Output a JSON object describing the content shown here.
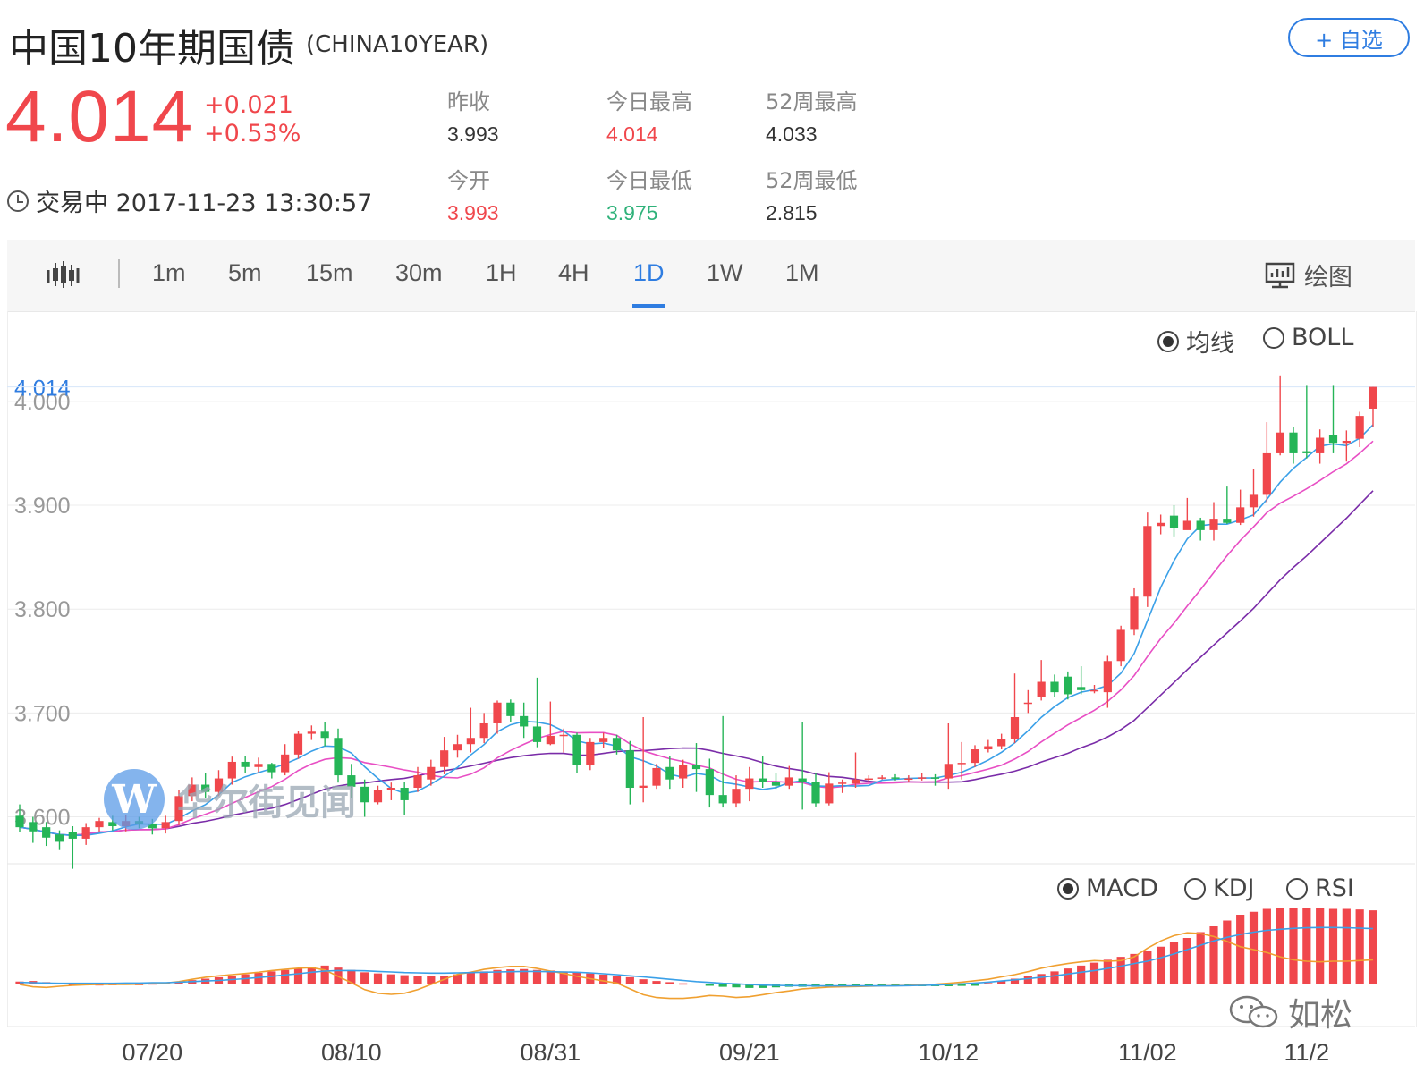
{
  "header": {
    "title": "中国10年期国债",
    "symbol": "(CHINA10YEAR)",
    "watch_label": "+ 自选",
    "price": "4.014",
    "change": "+0.021",
    "change_pct": "+0.53%",
    "status": "交易中 2017-11-23 13:30:57"
  },
  "stats": [
    {
      "label": "昨收",
      "value": "3.993",
      "color": "dark"
    },
    {
      "label": "今日最高",
      "value": "4.014",
      "color": "red"
    },
    {
      "label": "52周最高",
      "value": "4.033",
      "color": "dark"
    },
    {
      "label": "今开",
      "value": "3.993",
      "color": "red"
    },
    {
      "label": "今日最低",
      "value": "3.975",
      "color": "green"
    },
    {
      "label": "52周最低",
      "value": "2.815",
      "color": "dark"
    }
  ],
  "toolbar": {
    "tabs": [
      "1m",
      "5m",
      "15m",
      "30m",
      "1H",
      "4H",
      "1D",
      "1W",
      "1M"
    ],
    "active_tab": "1D",
    "draw_label": "绘图"
  },
  "overlay_options": {
    "ma": "均线",
    "boll": "BOLL",
    "selected": "均线"
  },
  "indicator_options": {
    "macd": "MACD",
    "kdj": "KDJ",
    "rsi": "RSI",
    "selected": "MACD"
  },
  "watermark": {
    "logo": "W",
    "text": "华尔街见闻"
  },
  "wechat": {
    "name": "如松"
  },
  "colors": {
    "up": "#f0474c",
    "down": "#25b557",
    "accent": "#2f7de1",
    "ma5": "#3aa0e8",
    "ma10": "#e84fc4",
    "ma20": "#7a2ca8",
    "dea": "#f0a030",
    "dif": "#3aa0e8"
  },
  "chart_data": {
    "type": "candlestick",
    "ylim": [
      3.56,
      4.03
    ],
    "yticks": [
      "3.600",
      "3.700",
      "3.800",
      "3.900",
      "4.000"
    ],
    "last_price_label": "4.014",
    "xlabels": [
      "07/20",
      "08/10",
      "08/31",
      "09/21",
      "10/12",
      "11/02",
      "11/2"
    ],
    "xlabel_index": [
      10,
      25,
      40,
      55,
      70,
      85,
      97
    ],
    "candles": [
      [
        3.601,
        3.59,
        3.612,
        3.585
      ],
      [
        3.595,
        3.586,
        3.6,
        3.575
      ],
      [
        3.59,
        3.58,
        3.595,
        3.572
      ],
      [
        3.583,
        3.576,
        3.587,
        3.568
      ],
      [
        3.585,
        3.579,
        3.591,
        3.55
      ],
      [
        3.579,
        3.59,
        3.594,
        3.573
      ],
      [
        3.59,
        3.596,
        3.599,
        3.586
      ],
      [
        3.595,
        3.591,
        3.601,
        3.587
      ],
      [
        3.591,
        3.596,
        3.602,
        3.586
      ],
      [
        3.596,
        3.593,
        3.6,
        3.589
      ],
      [
        3.593,
        3.589,
        3.598,
        3.583
      ],
      [
        3.589,
        3.595,
        3.601,
        3.584
      ],
      [
        3.596,
        3.62,
        3.626,
        3.592
      ],
      [
        3.62,
        3.631,
        3.638,
        3.615
      ],
      [
        3.631,
        3.624,
        3.642,
        3.618
      ],
      [
        3.624,
        3.637,
        3.645,
        3.62
      ],
      [
        3.637,
        3.653,
        3.658,
        3.631
      ],
      [
        3.653,
        3.648,
        3.659,
        3.642
      ],
      [
        3.648,
        3.651,
        3.657,
        3.643
      ],
      [
        3.651,
        3.643,
        3.652,
        3.637
      ],
      [
        3.643,
        3.66,
        3.67,
        3.64
      ],
      [
        3.66,
        3.68,
        3.683,
        3.656
      ],
      [
        3.68,
        3.682,
        3.688,
        3.674
      ],
      [
        3.682,
        3.676,
        3.691,
        3.668
      ],
      [
        3.676,
        3.64,
        3.685,
        3.633
      ],
      [
        3.64,
        3.629,
        3.651,
        3.618
      ],
      [
        3.629,
        3.614,
        3.636,
        3.6
      ],
      [
        3.614,
        3.626,
        3.63,
        3.612
      ],
      [
        3.626,
        3.628,
        3.633,
        3.616
      ],
      [
        3.628,
        3.616,
        3.634,
        3.602
      ],
      [
        3.628,
        3.64,
        3.648,
        3.624
      ],
      [
        3.636,
        3.648,
        3.655,
        3.63
      ],
      [
        3.648,
        3.664,
        3.677,
        3.641
      ],
      [
        3.664,
        3.67,
        3.679,
        3.657
      ],
      [
        3.67,
        3.676,
        3.705,
        3.662
      ],
      [
        3.676,
        3.69,
        3.7,
        3.671
      ],
      [
        3.69,
        3.71,
        3.712,
        3.68
      ],
      [
        3.71,
        3.697,
        3.713,
        3.691
      ],
      [
        3.697,
        3.687,
        3.71,
        3.676
      ],
      [
        3.687,
        3.672,
        3.734,
        3.667
      ],
      [
        3.67,
        3.678,
        3.711,
        3.669
      ],
      [
        3.679,
        3.679,
        3.685,
        3.662
      ],
      [
        3.679,
        3.65,
        3.681,
        3.642
      ],
      [
        3.65,
        3.672,
        3.676,
        3.645
      ],
      [
        3.672,
        3.676,
        3.681,
        3.666
      ],
      [
        3.676,
        3.664,
        3.679,
        3.66
      ],
      [
        3.664,
        3.628,
        3.673,
        3.612
      ],
      [
        3.628,
        3.63,
        3.696,
        3.614
      ],
      [
        3.63,
        3.647,
        3.651,
        3.627
      ],
      [
        3.648,
        3.636,
        3.659,
        3.627
      ],
      [
        3.637,
        3.65,
        3.655,
        3.628
      ],
      [
        3.65,
        3.646,
        3.671,
        3.624
      ],
      [
        3.646,
        3.621,
        3.656,
        3.609
      ],
      [
        3.621,
        3.613,
        3.697,
        3.609
      ],
      [
        3.613,
        3.627,
        3.64,
        3.609
      ],
      [
        3.627,
        3.637,
        3.648,
        3.615
      ],
      [
        3.637,
        3.634,
        3.659,
        3.628
      ],
      [
        3.634,
        3.63,
        3.642,
        3.627
      ],
      [
        3.63,
        3.638,
        3.649,
        3.627
      ],
      [
        3.637,
        3.634,
        3.691,
        3.607
      ],
      [
        3.634,
        3.613,
        3.642,
        3.61
      ],
      [
        3.613,
        3.632,
        3.643,
        3.611
      ],
      [
        3.632,
        3.633,
        3.636,
        3.623
      ],
      [
        3.632,
        3.636,
        3.662,
        3.628
      ],
      [
        3.637,
        3.637,
        3.64,
        3.633
      ],
      [
        3.637,
        3.638,
        3.64,
        3.636
      ],
      [
        3.638,
        3.637,
        3.641,
        3.635
      ],
      [
        3.637,
        3.637,
        3.64,
        3.634
      ],
      [
        3.637,
        3.638,
        3.642,
        3.635
      ],
      [
        3.638,
        3.637,
        3.641,
        3.63
      ],
      [
        3.637,
        3.651,
        3.69,
        3.627
      ],
      [
        3.651,
        3.652,
        3.672,
        3.636
      ],
      [
        3.652,
        3.665,
        3.669,
        3.648
      ],
      [
        3.665,
        3.668,
        3.674,
        3.662
      ],
      [
        3.668,
        3.675,
        3.68,
        3.665
      ],
      [
        3.675,
        3.696,
        3.738,
        3.671
      ],
      [
        3.71,
        3.71,
        3.722,
        3.7
      ],
      [
        3.715,
        3.73,
        3.751,
        3.712
      ],
      [
        3.73,
        3.72,
        3.737,
        3.715
      ],
      [
        3.735,
        3.718,
        3.74,
        3.713
      ],
      [
        3.725,
        3.722,
        3.745,
        3.718
      ],
      [
        3.722,
        3.722,
        3.727,
        3.719
      ],
      [
        3.72,
        3.75,
        3.755,
        3.705
      ],
      [
        3.75,
        3.78,
        3.784,
        3.745
      ],
      [
        3.78,
        3.812,
        3.82,
        3.775
      ],
      [
        3.812,
        3.88,
        3.893,
        3.802
      ],
      [
        3.88,
        3.883,
        3.891,
        3.872
      ],
      [
        3.89,
        3.878,
        3.9,
        3.87
      ],
      [
        3.876,
        3.885,
        3.907,
        3.881
      ],
      [
        3.885,
        3.876,
        3.888,
        3.866
      ],
      [
        3.876,
        3.887,
        3.903,
        3.866
      ],
      [
        3.887,
        3.883,
        3.918,
        3.882
      ],
      [
        3.883,
        3.898,
        3.915,
        3.881
      ],
      [
        3.898,
        3.91,
        3.935,
        3.889
      ],
      [
        3.91,
        3.95,
        3.98,
        3.902
      ],
      [
        3.95,
        3.97,
        4.025,
        3.948
      ],
      [
        3.97,
        3.95,
        3.975,
        3.94
      ],
      [
        3.952,
        3.95,
        4.015,
        3.945
      ],
      [
        3.95,
        3.965,
        3.973,
        3.94
      ],
      [
        3.968,
        3.96,
        4.015,
        3.95
      ],
      [
        3.96,
        3.962,
        3.972,
        3.942
      ],
      [
        3.964,
        3.986,
        3.99,
        3.956
      ],
      [
        3.993,
        4.014,
        4.014,
        3.975
      ]
    ],
    "macd": {
      "ylim": [
        -0.012,
        0.028
      ],
      "hist": [
        0.001,
        0.0012,
        0.0008,
        0.0005,
        0.0003,
        0.0002,
        0.0001,
        0.0002,
        0.0003,
        0.0002,
        0.0004,
        0.0006,
        0.001,
        0.0015,
        0.002,
        0.0025,
        0.003,
        0.0035,
        0.004,
        0.0045,
        0.005,
        0.0055,
        0.006,
        0.0065,
        0.0058,
        0.005,
        0.0042,
        0.0038,
        0.0035,
        0.0032,
        0.003,
        0.0028,
        0.003,
        0.0035,
        0.004,
        0.0045,
        0.005,
        0.0052,
        0.0053,
        0.005,
        0.0048,
        0.0045,
        0.0042,
        0.0038,
        0.0034,
        0.003,
        0.0025,
        0.0018,
        0.0012,
        0.0008,
        0.0004,
        0.0,
        -0.0004,
        -0.0008,
        -0.001,
        -0.0012,
        -0.0012,
        -0.001,
        -0.0008,
        -0.0008,
        -0.0008,
        -0.0008,
        -0.0008,
        -0.0007,
        -0.0006,
        -0.0006,
        -0.0006,
        -0.0006,
        -0.0006,
        -0.0006,
        -0.0006,
        -0.0005,
        -0.0004,
        0.0005,
        0.0012,
        0.002,
        0.0028,
        0.0036,
        0.0045,
        0.0055,
        0.0065,
        0.0075,
        0.0085,
        0.0095,
        0.0105,
        0.0115,
        0.013,
        0.0145,
        0.016,
        0.018,
        0.02,
        0.022,
        0.024,
        0.025,
        0.026,
        0.0262,
        0.0262,
        0.0262,
        0.0262,
        0.026,
        0.026,
        0.0258,
        0.0255
      ],
      "dif": [
        0.0007,
        0.0006,
        0.0005,
        0.0004,
        0.0004,
        0.0004,
        0.0004,
        0.0004,
        0.0005,
        0.0005,
        0.0006,
        0.0006,
        0.0008,
        0.001,
        0.0012,
        0.0014,
        0.0017,
        0.002,
        0.0024,
        0.0028,
        0.0033,
        0.0037,
        0.0042,
        0.0046,
        0.0048,
        0.0048,
        0.0047,
        0.0045,
        0.0043,
        0.0041,
        0.004,
        0.0039,
        0.0039,
        0.004,
        0.0041,
        0.0042,
        0.0043,
        0.0044,
        0.0045,
        0.0045,
        0.0044,
        0.0043,
        0.0042,
        0.004,
        0.0037,
        0.0034,
        0.003,
        0.0026,
        0.0022,
        0.0018,
        0.0014,
        0.001,
        0.0007,
        0.0004,
        0.0002,
        0.0,
        -0.0002,
        -0.0003,
        -0.0004,
        -0.0004,
        -0.0005,
        -0.0005,
        -0.0005,
        -0.0005,
        -0.0005,
        -0.0005,
        -0.0005,
        -0.0004,
        -0.0003,
        -0.0002,
        0.0,
        0.0002,
        0.0005,
        0.0008,
        0.0012,
        0.0016,
        0.002,
        0.0025,
        0.003,
        0.0036,
        0.0042,
        0.0048,
        0.0055,
        0.0063,
        0.0072,
        0.008,
        0.0092,
        0.0105,
        0.012,
        0.0135,
        0.015,
        0.0162,
        0.0172,
        0.018,
        0.0186,
        0.019,
        0.0193,
        0.0195,
        0.0196,
        0.0196,
        0.0195,
        0.0194,
        0.0192
      ],
      "dea": [
        0.0,
        -0.0008,
        -0.001,
        -0.0006,
        -0.0003,
        -0.0001,
        0.0,
        0.0,
        0.0,
        0.0001,
        0.0003,
        0.0005,
        0.001,
        0.0018,
        0.0025,
        0.003,
        0.0034,
        0.0038,
        0.0042,
        0.0048,
        0.0052,
        0.0056,
        0.0058,
        0.005,
        0.0028,
        0.0006,
        -0.0018,
        -0.003,
        -0.0034,
        -0.003,
        -0.0018,
        0.0,
        0.0018,
        0.0035,
        0.0042,
        0.0052,
        0.0058,
        0.0062,
        0.0062,
        0.0055,
        0.0046,
        0.0038,
        0.0028,
        0.002,
        0.0012,
        0.0005,
        -0.0015,
        -0.0035,
        -0.0045,
        -0.0048,
        -0.0048,
        -0.0044,
        -0.0038,
        -0.004,
        -0.0045,
        -0.0042,
        -0.0035,
        -0.0028,
        -0.0022,
        -0.0015,
        -0.0012,
        -0.0009,
        -0.0008,
        -0.0007,
        -0.0006,
        -0.0005,
        -0.0004,
        -0.0003,
        -0.0001,
        0.0001,
        0.0004,
        0.0008,
        0.0013,
        0.0018,
        0.0026,
        0.0034,
        0.0044,
        0.0056,
        0.0065,
        0.0072,
        0.0078,
        0.0082,
        0.008,
        0.0082,
        0.0095,
        0.0125,
        0.015,
        0.0168,
        0.0178,
        0.0175,
        0.0165,
        0.0148,
        0.013,
        0.012,
        0.011,
        0.0095,
        0.0085,
        0.008,
        0.0078,
        0.008,
        0.008,
        0.0082,
        0.0085
      ]
    }
  }
}
